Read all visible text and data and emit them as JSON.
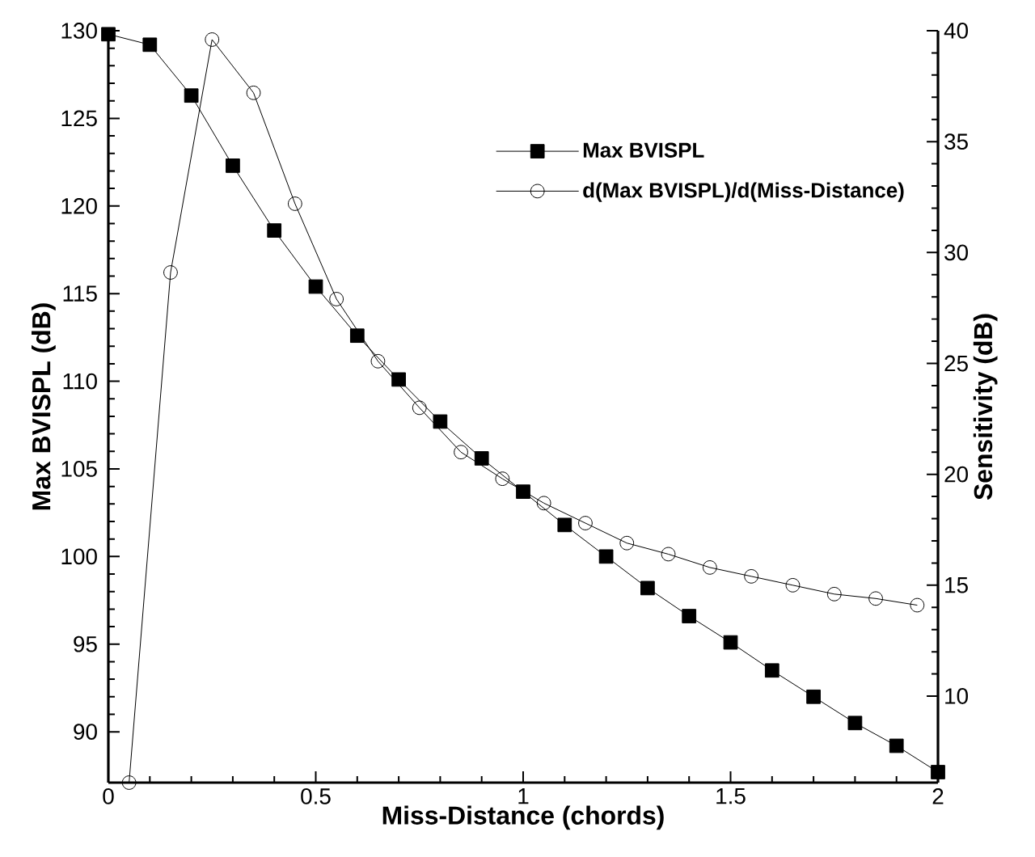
{
  "chart_data": {
    "type": "line",
    "xlabel": "Miss-Distance (chords)",
    "ylabel": "Max BVISPL (dB)",
    "y2label": "Sensitivity (dB)",
    "xlim": [
      0,
      2
    ],
    "xticks": [
      0,
      0.5,
      1,
      1.5,
      2
    ],
    "ylim": [
      87.1,
      130
    ],
    "yticks": [
      90,
      95,
      100,
      105,
      110,
      115,
      120,
      125,
      130
    ],
    "y2lim": [
      6.1,
      40
    ],
    "y2ticks": [
      10,
      15,
      20,
      25,
      30,
      35,
      40
    ],
    "legend": "top right",
    "series": [
      {
        "name": "Max BVISPL",
        "color": "#000000",
        "marker": "square",
        "x": [
          0,
          0.1,
          0.2,
          0.3,
          0.4,
          0.5,
          0.6,
          0.7,
          0.8,
          0.9,
          1.0,
          1.1,
          1.2,
          1.3,
          1.4,
          1.5,
          1.6,
          1.7,
          1.8,
          1.9,
          2.0
        ],
        "values": [
          129.8,
          129.2,
          126.3,
          122.3,
          118.6,
          115.4,
          112.6,
          110.1,
          107.7,
          105.6,
          103.7,
          101.8,
          100.0,
          98.2,
          96.6,
          95.1,
          93.5,
          92.0,
          90.5,
          89.2,
          87.7
        ]
      },
      {
        "name": "d(Max BVISPL)/d(Miss-Distance)",
        "color": "#000000",
        "marker": "circle",
        "axis": "y2",
        "x": [
          0.05,
          0.15,
          0.25,
          0.35,
          0.45,
          0.55,
          0.65,
          0.75,
          0.85,
          0.95,
          1.05,
          1.15,
          1.25,
          1.35,
          1.45,
          1.55,
          1.65,
          1.75,
          1.85,
          1.95
        ],
        "values": [
          6.1,
          29.1,
          39.6,
          37.2,
          32.2,
          27.9,
          25.1,
          23.0,
          21.0,
          19.8,
          18.7,
          17.8,
          16.9,
          16.4,
          15.8,
          15.4,
          15.0,
          14.6,
          14.4,
          14.1
        ]
      }
    ]
  }
}
